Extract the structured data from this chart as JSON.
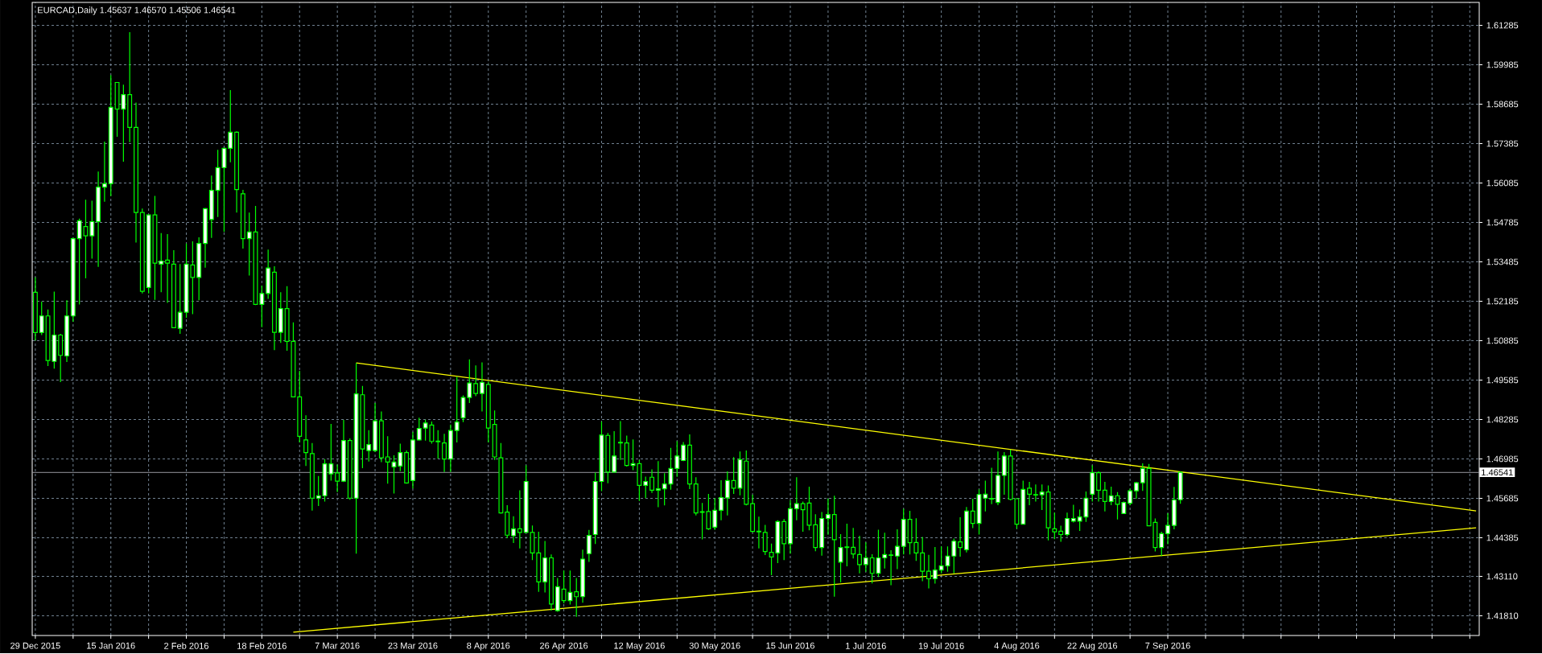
{
  "chart_data": {
    "type": "candlestick",
    "title": "EURCAD,Daily  1.45637 1.46570 1.45506 1.46541",
    "categories": [
      "29 Dec 2015",
      null,
      null,
      null,
      null,
      null,
      null,
      null,
      null,
      null,
      null,
      null,
      "15 Jan 2016",
      null,
      null,
      null,
      null,
      null,
      null,
      null,
      null,
      null,
      null,
      null,
      "2 Feb 2016",
      null,
      null,
      null,
      null,
      null,
      null,
      null,
      null,
      null,
      null,
      null,
      "18 Feb 2016",
      null,
      null,
      null,
      null,
      null,
      null,
      null,
      null,
      null,
      null,
      null,
      "7 Mar 2016",
      null,
      null,
      null,
      null,
      null,
      null,
      null,
      null,
      null,
      null,
      null,
      "23 Mar 2016",
      null,
      null,
      null,
      null,
      null,
      null,
      null,
      null,
      null,
      null,
      null,
      "8 Apr 2016",
      null,
      null,
      null,
      null,
      null,
      null,
      null,
      null,
      null,
      null,
      null,
      "26 Apr 2016",
      null,
      null,
      null,
      null,
      null,
      null,
      null,
      null,
      null,
      null,
      null,
      "12 May 2016",
      null,
      null,
      null,
      null,
      null,
      null,
      null,
      null,
      null,
      null,
      null,
      "30 May 2016",
      null,
      null,
      null,
      null,
      null,
      null,
      null,
      null,
      null,
      null,
      null,
      "15 Jun 2016",
      null,
      null,
      null,
      null,
      null,
      null,
      null,
      null,
      null,
      null,
      null,
      "1 Jul 2016",
      null,
      null,
      null,
      null,
      null,
      null,
      null,
      null,
      null,
      null,
      null,
      "19 Jul 2016",
      null,
      null,
      null,
      null,
      null,
      null,
      null,
      null,
      null,
      null,
      null,
      "4 Aug 2016",
      null,
      null,
      null,
      null,
      null,
      null,
      null,
      null,
      null,
      null,
      null,
      "22 Aug 2016",
      null,
      null,
      null,
      null,
      null,
      null,
      null,
      null,
      null,
      null,
      null,
      "7 Sep 2016",
      null,
      null,
      null,
      null,
      null,
      null,
      null,
      null,
      null,
      null,
      null,
      null,
      null,
      null,
      null,
      null,
      null,
      null,
      null,
      null,
      null,
      null,
      null,
      null,
      null,
      null,
      null,
      null,
      null,
      null,
      null,
      null,
      null,
      null,
      null,
      null,
      null,
      null,
      null,
      null,
      null,
      null,
      null,
      null,
      null,
      null,
      null,
      null,
      null
    ],
    "color": "#00ff00",
    "ohlc": [
      [
        1.5248,
        1.5297,
        1.5089,
        1.5115
      ],
      [
        1.5115,
        1.5217,
        1.5107,
        1.517
      ],
      [
        1.517,
        1.5191,
        1.5005,
        1.5023
      ],
      [
        1.502,
        1.525,
        1.4996,
        1.5107
      ],
      [
        1.5107,
        1.5111,
        1.4952,
        1.504
      ],
      [
        1.5038,
        1.5222,
        1.5018,
        1.517
      ],
      [
        1.517,
        1.5428,
        1.5151,
        1.5425
      ],
      [
        1.5425,
        1.5491,
        1.5208,
        1.5484
      ],
      [
        1.5465,
        1.5553,
        1.5294,
        1.5434
      ],
      [
        1.5434,
        1.555,
        1.5359,
        1.5481
      ],
      [
        1.5481,
        1.5646,
        1.5332,
        1.5595
      ],
      [
        1.5595,
        1.5745,
        1.5547,
        1.5606
      ],
      [
        1.5606,
        1.5964,
        1.5565,
        1.5858
      ],
      [
        1.594,
        1.594,
        1.5761,
        1.5852
      ],
      [
        1.5852,
        1.5933,
        1.5679,
        1.59
      ],
      [
        1.59,
        1.6106,
        1.5743,
        1.5792
      ],
      [
        1.5792,
        1.5874,
        1.5412,
        1.5511
      ],
      [
        1.5511,
        1.5524,
        1.5244,
        1.5251
      ],
      [
        1.5264,
        1.5503,
        1.5244,
        1.5503
      ],
      [
        1.5503,
        1.5566,
        1.5223,
        1.5344
      ],
      [
        1.5341,
        1.5443,
        1.5248,
        1.5351
      ],
      [
        1.5354,
        1.544,
        1.5213,
        1.5344
      ],
      [
        1.5341,
        1.5387,
        1.5131,
        1.5131
      ],
      [
        1.5129,
        1.5341,
        1.5111,
        1.5182
      ],
      [
        1.5182,
        1.5409,
        1.5164,
        1.5341
      ],
      [
        1.5338,
        1.5416,
        1.5176,
        1.5297
      ],
      [
        1.5297,
        1.5429,
        1.5222,
        1.5409
      ],
      [
        1.5409,
        1.5526,
        1.5329,
        1.5524
      ],
      [
        1.5488,
        1.5633,
        1.5427,
        1.5584
      ],
      [
        1.5584,
        1.5718,
        1.5496,
        1.5659
      ],
      [
        1.5659,
        1.5723,
        1.5447,
        1.5723
      ],
      [
        1.5723,
        1.5915,
        1.5677,
        1.5776
      ],
      [
        1.5776,
        1.5779,
        1.5511,
        1.5587
      ],
      [
        1.5573,
        1.5586,
        1.5392,
        1.5425
      ],
      [
        1.5425,
        1.5511,
        1.5303,
        1.5447
      ],
      [
        1.5447,
        1.5533,
        1.5206,
        1.5208
      ],
      [
        1.5208,
        1.527,
        1.5133,
        1.5244
      ],
      [
        1.5244,
        1.5389,
        1.5226,
        1.5328
      ],
      [
        1.5314,
        1.5334,
        1.5057,
        1.5116
      ],
      [
        1.5116,
        1.5248,
        1.5081,
        1.5194
      ],
      [
        1.5194,
        1.5268,
        1.5055,
        1.5086
      ],
      [
        1.5086,
        1.5149,
        1.4903,
        1.4903
      ],
      [
        1.4903,
        1.4989,
        1.4753,
        1.4773
      ],
      [
        1.4761,
        1.4842,
        1.4675,
        1.4719
      ],
      [
        1.4716,
        1.4751,
        1.4528,
        1.4569
      ],
      [
        1.4569,
        1.4642,
        1.4543,
        1.4577
      ],
      [
        1.4577,
        1.4698,
        1.4558,
        1.4682
      ],
      [
        1.4649,
        1.4814,
        1.4627,
        1.4682
      ],
      [
        1.4652,
        1.468,
        1.4589,
        1.4625
      ],
      [
        1.4625,
        1.4827,
        1.4622,
        1.4759
      ],
      [
        1.4759,
        1.4766,
        1.4564,
        1.4569
      ],
      [
        1.4569,
        1.5015,
        1.4386,
        1.4913
      ],
      [
        1.491,
        1.4939,
        1.4668,
        1.4731
      ],
      [
        1.4726,
        1.4793,
        1.469,
        1.4746
      ],
      [
        1.4726,
        1.4883,
        1.4721,
        1.4824
      ],
      [
        1.4824,
        1.4855,
        1.4688,
        1.4702
      ],
      [
        1.4705,
        1.4773,
        1.4617,
        1.4688
      ],
      [
        1.4672,
        1.471,
        1.4584,
        1.4688
      ],
      [
        1.4675,
        1.4749,
        1.4658,
        1.4719
      ],
      [
        1.4719,
        1.4726,
        1.4617,
        1.4619
      ],
      [
        1.4627,
        1.4787,
        1.4601,
        1.4761
      ],
      [
        1.4761,
        1.4834,
        1.4759,
        1.4799
      ],
      [
        1.48,
        1.4828,
        1.4759,
        1.4817
      ],
      [
        1.481,
        1.4822,
        1.4749,
        1.4756
      ],
      [
        1.4757,
        1.4793,
        1.47,
        1.4755
      ],
      [
        1.4751,
        1.4781,
        1.4655,
        1.4698
      ],
      [
        1.4698,
        1.4812,
        1.4655,
        1.4792
      ],
      [
        1.4792,
        1.4969,
        1.4753,
        1.482
      ],
      [
        1.4834,
        1.4908,
        1.482,
        1.4901
      ],
      [
        1.4901,
        1.5027,
        1.4883,
        1.4949
      ],
      [
        1.4947,
        1.5007,
        1.4905,
        1.4914
      ],
      [
        1.4914,
        1.5017,
        1.4855,
        1.4951
      ],
      [
        1.4944,
        1.4954,
        1.4753,
        1.48
      ],
      [
        1.4812,
        1.4858,
        1.4695,
        1.4705
      ],
      [
        1.4702,
        1.4751,
        1.4518,
        1.452
      ],
      [
        1.4523,
        1.4546,
        1.4437,
        1.4447
      ],
      [
        1.4445,
        1.4509,
        1.4421,
        1.4468
      ],
      [
        1.4468,
        1.4595,
        1.4403,
        1.4456
      ],
      [
        1.4456,
        1.4677,
        1.4456,
        1.4624
      ],
      [
        1.4456,
        1.4479,
        1.4365,
        1.4388
      ],
      [
        1.4388,
        1.4458,
        1.426,
        1.4293
      ],
      [
        1.4293,
        1.4428,
        1.4258,
        1.4372
      ],
      [
        1.4372,
        1.4383,
        1.4198,
        1.422
      ],
      [
        1.4198,
        1.4306,
        1.4194,
        1.4277
      ],
      [
        1.4269,
        1.433,
        1.4222,
        1.4231
      ],
      [
        1.4231,
        1.433,
        1.4218,
        1.4258
      ],
      [
        1.426,
        1.4306,
        1.4178,
        1.4244
      ],
      [
        1.4244,
        1.4399,
        1.4224,
        1.4368
      ],
      [
        1.4386,
        1.4464,
        1.4359,
        1.4446
      ],
      [
        1.4449,
        1.4653,
        1.4418,
        1.4624
      ],
      [
        1.4624,
        1.4822,
        1.4592,
        1.4777
      ],
      [
        1.4776,
        1.4784,
        1.4618,
        1.4655
      ],
      [
        1.4655,
        1.479,
        1.4653,
        1.4708
      ],
      [
        1.4753,
        1.4823,
        1.4695,
        1.4751
      ],
      [
        1.4751,
        1.4775,
        1.4673,
        1.4677
      ],
      [
        1.4677,
        1.4763,
        1.4661,
        1.4683
      ],
      [
        1.4683,
        1.4695,
        1.456,
        1.4611
      ],
      [
        1.4611,
        1.464,
        1.4569,
        1.4624
      ],
      [
        1.4638,
        1.4664,
        1.4586,
        1.4595
      ],
      [
        1.4595,
        1.4691,
        1.4539,
        1.46
      ],
      [
        1.46,
        1.4651,
        1.4545,
        1.4616
      ],
      [
        1.4616,
        1.4735,
        1.4597,
        1.4667
      ],
      [
        1.4667,
        1.4757,
        1.4639,
        1.4708
      ],
      [
        1.4693,
        1.4754,
        1.4691,
        1.4744
      ],
      [
        1.4744,
        1.4779,
        1.4599,
        1.4616
      ],
      [
        1.4616,
        1.4638,
        1.4512,
        1.452
      ],
      [
        1.4524,
        1.4553,
        1.4433,
        1.4522
      ],
      [
        1.4525,
        1.4583,
        1.4464,
        1.4468
      ],
      [
        1.4473,
        1.4569,
        1.4464,
        1.4529
      ],
      [
        1.4529,
        1.4628,
        1.4496,
        1.4571
      ],
      [
        1.457,
        1.4657,
        1.4512,
        1.4627
      ],
      [
        1.4627,
        1.4704,
        1.4583,
        1.4602
      ],
      [
        1.4602,
        1.4723,
        1.4578,
        1.4696
      ],
      [
        1.4691,
        1.4726,
        1.4545,
        1.4549
      ],
      [
        1.4551,
        1.458,
        1.4456,
        1.4459
      ],
      [
        1.446,
        1.4508,
        1.4403,
        1.4458
      ],
      [
        1.4456,
        1.4481,
        1.4381,
        1.4393
      ],
      [
        1.439,
        1.4419,
        1.4315,
        1.4375
      ],
      [
        1.4388,
        1.4496,
        1.4355,
        1.4492
      ],
      [
        1.4492,
        1.45,
        1.4365,
        1.4419
      ],
      [
        1.4419,
        1.4562,
        1.4386,
        1.4534
      ],
      [
        1.4534,
        1.4638,
        1.4496,
        1.4551
      ],
      [
        1.4551,
        1.4558,
        1.4458,
        1.4531
      ],
      [
        1.4553,
        1.4607,
        1.4463,
        1.448
      ],
      [
        1.4481,
        1.4516,
        1.4394,
        1.4406
      ],
      [
        1.4406,
        1.4523,
        1.4379,
        1.4502
      ],
      [
        1.4502,
        1.4568,
        1.4448,
        1.4515
      ],
      [
        1.4515,
        1.4577,
        1.4244,
        1.4432
      ],
      [
        1.4358,
        1.445,
        1.4291,
        1.4406
      ],
      [
        1.4408,
        1.4485,
        1.4344,
        1.4406
      ],
      [
        1.4407,
        1.4471,
        1.437,
        1.4385
      ],
      [
        1.4383,
        1.4445,
        1.4321,
        1.435
      ],
      [
        1.435,
        1.4423,
        1.4326,
        1.4372
      ],
      [
        1.4372,
        1.4384,
        1.4288,
        1.4321
      ],
      [
        1.4321,
        1.4465,
        1.4309,
        1.4372
      ],
      [
        1.4372,
        1.4455,
        1.4337,
        1.4383
      ],
      [
        1.4382,
        1.4397,
        1.4282,
        1.438
      ],
      [
        1.4378,
        1.4466,
        1.4335,
        1.441
      ],
      [
        1.441,
        1.4534,
        1.4383,
        1.4499
      ],
      [
        1.4499,
        1.4527,
        1.4383,
        1.4422
      ],
      [
        1.4423,
        1.4503,
        1.4362,
        1.4388
      ],
      [
        1.4388,
        1.4441,
        1.4295,
        1.4328
      ],
      [
        1.4328,
        1.4382,
        1.4271,
        1.4303
      ],
      [
        1.4303,
        1.4408,
        1.4287,
        1.4332
      ],
      [
        1.4332,
        1.441,
        1.4321,
        1.4346
      ],
      [
        1.4346,
        1.441,
        1.4326,
        1.4378
      ],
      [
        1.4378,
        1.4436,
        1.4321,
        1.4427
      ],
      [
        1.4425,
        1.4506,
        1.4376,
        1.4406
      ],
      [
        1.4399,
        1.454,
        1.439,
        1.4526
      ],
      [
        1.4526,
        1.4567,
        1.447,
        1.4486
      ],
      [
        1.4486,
        1.4598,
        1.4449,
        1.4581
      ],
      [
        1.4569,
        1.4627,
        1.4525,
        1.4582
      ],
      [
        1.4568,
        1.4669,
        1.4549,
        1.4566
      ],
      [
        1.4555,
        1.4723,
        1.4546,
        1.4644
      ],
      [
        1.4644,
        1.4721,
        1.458,
        1.4708
      ],
      [
        1.4708,
        1.4729,
        1.4562,
        1.4565
      ],
      [
        1.4567,
        1.4567,
        1.4468,
        1.4483
      ],
      [
        1.4483,
        1.4627,
        1.4483,
        1.4598
      ],
      [
        1.4602,
        1.4623,
        1.4546,
        1.4582
      ],
      [
        1.4581,
        1.4614,
        1.4558,
        1.4579
      ],
      [
        1.458,
        1.4614,
        1.453,
        1.4589
      ],
      [
        1.4589,
        1.4611,
        1.443,
        1.4471
      ],
      [
        1.4468,
        1.4521,
        1.4434,
        1.4458
      ],
      [
        1.446,
        1.4478,
        1.4425,
        1.4449
      ],
      [
        1.4449,
        1.4521,
        1.4443,
        1.4502
      ],
      [
        1.4493,
        1.4547,
        1.4489,
        1.4502
      ],
      [
        1.4493,
        1.4531,
        1.4461,
        1.4507
      ],
      [
        1.4507,
        1.4591,
        1.4491,
        1.4569
      ],
      [
        1.4582,
        1.4677,
        1.4558,
        1.4653
      ],
      [
        1.4653,
        1.4657,
        1.4558,
        1.4595
      ],
      [
        1.4595,
        1.4623,
        1.4525,
        1.4558
      ],
      [
        1.4558,
        1.4607,
        1.4546,
        1.4577
      ],
      [
        1.4577,
        1.4589,
        1.4499,
        1.4549
      ],
      [
        1.4518,
        1.4558,
        1.4518,
        1.4555
      ],
      [
        1.4552,
        1.46,
        1.4545,
        1.4593
      ],
      [
        1.4593,
        1.4623,
        1.4567,
        1.462
      ],
      [
        1.462,
        1.4684,
        1.4593,
        1.4667
      ],
      [
        1.4667,
        1.4682,
        1.4478,
        1.4478
      ],
      [
        1.4489,
        1.4502,
        1.4393,
        1.4406
      ],
      [
        1.4406,
        1.4458,
        1.4378,
        1.4452
      ],
      [
        1.4452,
        1.4519,
        1.4417,
        1.4479
      ],
      [
        1.4479,
        1.4606,
        1.4466,
        1.4563
      ],
      [
        1.45637,
        1.4657,
        1.45506,
        1.46541
      ],
      null,
      null,
      null,
      null,
      null,
      null,
      null,
      null,
      null,
      null,
      null,
      null,
      null,
      null,
      null,
      null,
      null,
      null,
      null,
      null,
      null,
      null,
      null,
      null,
      null,
      null,
      null,
      null,
      null,
      null,
      null,
      null,
      null,
      null,
      null,
      null,
      null,
      null,
      null,
      null,
      null,
      null,
      null,
      null,
      null,
      null,
      null
    ],
    "series": [
      {
        "type": "line",
        "color": "#ffff00",
        "values": [
          null,
          null,
          null,
          null,
          null,
          null,
          null,
          null,
          null,
          null,
          null,
          null,
          null,
          null,
          null,
          null,
          null,
          null,
          null,
          null,
          null,
          null,
          null,
          null,
          null,
          null,
          null,
          null,
          null,
          null,
          null,
          null,
          null,
          null,
          null,
          null,
          null,
          null,
          null,
          null,
          null,
          null,
          null,
          null,
          null,
          null,
          null,
          null,
          null,
          null,
          null,
          1.5015,
          null,
          null,
          null,
          null,
          null,
          null,
          null,
          null,
          null,
          null,
          null,
          null,
          null,
          null,
          null,
          null,
          null,
          null,
          null,
          null,
          null,
          null,
          null,
          null,
          null,
          null,
          null,
          null,
          null,
          null,
          null,
          null,
          null,
          null,
          null,
          null,
          null,
          null,
          null,
          null,
          null,
          null,
          null,
          null,
          null,
          null,
          null,
          null,
          null,
          null,
          null,
          null,
          null,
          null,
          null,
          null,
          null,
          null,
          null,
          null,
          null,
          null,
          null,
          null,
          null,
          null,
          null,
          null,
          null,
          null,
          null,
          null,
          null,
          null,
          null,
          null,
          null,
          null,
          null,
          null,
          null,
          null,
          null,
          null,
          null,
          null,
          null,
          null,
          null,
          null,
          null,
          null,
          null,
          null,
          null,
          null,
          null,
          null,
          null,
          null,
          null,
          null,
          null,
          null,
          null,
          null,
          null,
          null,
          null,
          null,
          null,
          null,
          null,
          null,
          null,
          null,
          null,
          null,
          null,
          null,
          null,
          null,
          null,
          null,
          null,
          null,
          null,
          null,
          null,
          null,
          null,
          null,
          null,
          null,
          null,
          null,
          null,
          null,
          null,
          null,
          null,
          null,
          null,
          null,
          null,
          null,
          null,
          null,
          null,
          null,
          null,
          null,
          null,
          null,
          null,
          null,
          null,
          null,
          null,
          null,
          null,
          null,
          null,
          null,
          null,
          null,
          null,
          null,
          null,
          null,
          null,
          null,
          null,
          null,
          null,
          null,
          null,
          1.4527
        ]
      },
      {
        "type": "line",
        "color": "#ffff00",
        "values": [
          null,
          null,
          null,
          null,
          null,
          null,
          null,
          null,
          null,
          null,
          null,
          null,
          null,
          null,
          null,
          null,
          null,
          null,
          null,
          null,
          null,
          null,
          null,
          null,
          null,
          null,
          null,
          null,
          null,
          null,
          null,
          null,
          null,
          null,
          null,
          null,
          null,
          null,
          null,
          null,
          null,
          1.4127,
          null,
          null,
          null,
          null,
          null,
          null,
          null,
          null,
          null,
          null,
          null,
          null,
          null,
          null,
          null,
          null,
          null,
          null,
          null,
          null,
          null,
          null,
          null,
          null,
          null,
          null,
          null,
          null,
          null,
          null,
          null,
          null,
          null,
          null,
          null,
          null,
          null,
          null,
          null,
          null,
          null,
          null,
          null,
          null,
          null,
          null,
          null,
          null,
          null,
          null,
          null,
          null,
          null,
          null,
          null,
          null,
          null,
          null,
          null,
          null,
          null,
          null,
          null,
          null,
          null,
          null,
          null,
          null,
          null,
          null,
          null,
          null,
          null,
          null,
          null,
          null,
          null,
          null,
          null,
          null,
          null,
          null,
          null,
          null,
          null,
          null,
          null,
          null,
          null,
          null,
          null,
          null,
          null,
          null,
          null,
          null,
          null,
          null,
          null,
          null,
          null,
          null,
          null,
          null,
          null,
          null,
          null,
          null,
          null,
          null,
          null,
          null,
          null,
          null,
          null,
          null,
          null,
          null,
          null,
          null,
          null,
          null,
          null,
          null,
          null,
          null,
          null,
          null,
          null,
          null,
          null,
          null,
          null,
          null,
          null,
          null,
          null,
          null,
          null,
          null,
          null,
          null,
          null,
          null,
          null,
          null,
          null,
          null,
          null,
          null,
          null,
          null,
          null,
          null,
          null,
          null,
          null,
          null,
          null,
          null,
          null,
          null,
          null,
          null,
          null,
          null,
          null,
          null,
          null,
          null,
          null,
          null,
          null,
          null,
          null,
          null,
          null,
          null,
          null,
          null,
          null,
          null,
          null,
          null,
          null,
          null,
          null,
          1.4471
        ]
      }
    ],
    "ref_lines": [
      {
        "axis": "y",
        "value": 1.46541,
        "label": "1.46541",
        "color": "#a0a0a8"
      }
    ],
    "ylim": [
      1.4116,
      1.6204
    ],
    "yticks": [
      {
        "value": 1.4181,
        "label": "1.41810"
      },
      {
        "value": 1.4311,
        "label": "1.43110"
      },
      1.44385,
      1.45685,
      1.46985,
      1.48285,
      1.49585,
      1.50885,
      1.52185,
      1.53485,
      1.54785,
      1.56085,
      1.57385,
      1.58685,
      1.59985,
      1.61285
    ],
    "grid": true
  }
}
